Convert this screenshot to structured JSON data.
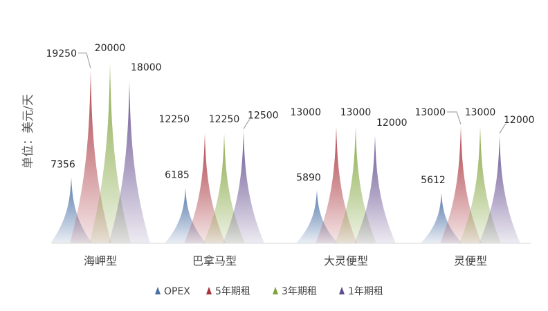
{
  "chart_data": {
    "type": "bar",
    "style": "cone-shaped columns with gradient fill",
    "title": "",
    "ylabel": "单位：美元/天",
    "xlabel": "",
    "categories": [
      "海岬型",
      "巴拿马型",
      "大灵便型",
      "灵便型"
    ],
    "series": [
      {
        "name": "OPEX",
        "color": "#4a6fa5",
        "values": [
          7356,
          6185,
          5890,
          5612
        ]
      },
      {
        "name": "5年期租",
        "color": "#a8323a",
        "values": [
          19250,
          12250,
          13000,
          13000
        ]
      },
      {
        "name": "3年期租",
        "color": "#7fa33a",
        "values": [
          20000,
          12250,
          13000,
          13000
        ]
      },
      {
        "name": "1年期租",
        "color": "#614a8c",
        "values": [
          18000,
          12500,
          12000,
          12000
        ]
      }
    ],
    "ylim": [
      0,
      20000
    ],
    "grid": false,
    "legend_position": "bottom"
  }
}
